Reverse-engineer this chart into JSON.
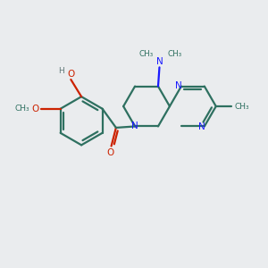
{
  "bg_color": "#eaecee",
  "atom_O_color": "#cc2200",
  "atom_N_color": "#1a1aff",
  "atom_H_color": "#607878",
  "atom_C_color": "#2e7060",
  "line_width": 1.6,
  "fig_width": 3.0,
  "fig_height": 3.0,
  "xlim": [
    0,
    10
  ],
  "ylim": [
    0,
    10
  ]
}
